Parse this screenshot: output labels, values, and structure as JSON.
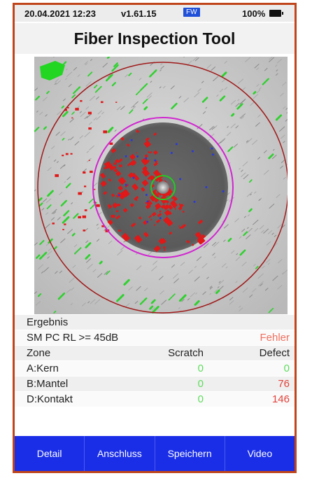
{
  "status_bar": {
    "datetime": "20.04.2021 12:23",
    "version": "v1.61.15",
    "badge": "FW",
    "battery": "100%",
    "battery_icon": "battery-icon"
  },
  "title": "Fiber Inspection Tool",
  "results": {
    "section_label": "Ergebnis",
    "standard": "SM PC RL >= 45dB",
    "verdict": "Fehler",
    "columns": {
      "zone": "Zone",
      "scratch": "Scratch",
      "defect": "Defect"
    },
    "rows": [
      {
        "zone": "A:Kern",
        "scratch": "0",
        "defect": "0"
      },
      {
        "zone": "B:Mantel",
        "scratch": "0",
        "defect": "76"
      },
      {
        "zone": "D:Kontakt",
        "scratch": "0",
        "defect": "146"
      }
    ]
  },
  "buttons": {
    "detail": "Detail",
    "anschluss": "Anschluss",
    "speichern": "Speichern",
    "video": "Video"
  },
  "colors": {
    "accent_border": "#c0451a",
    "nav_background": "#1a2ee8",
    "pass_color": "#5fdc5f",
    "fail_color": "#e2413a"
  }
}
